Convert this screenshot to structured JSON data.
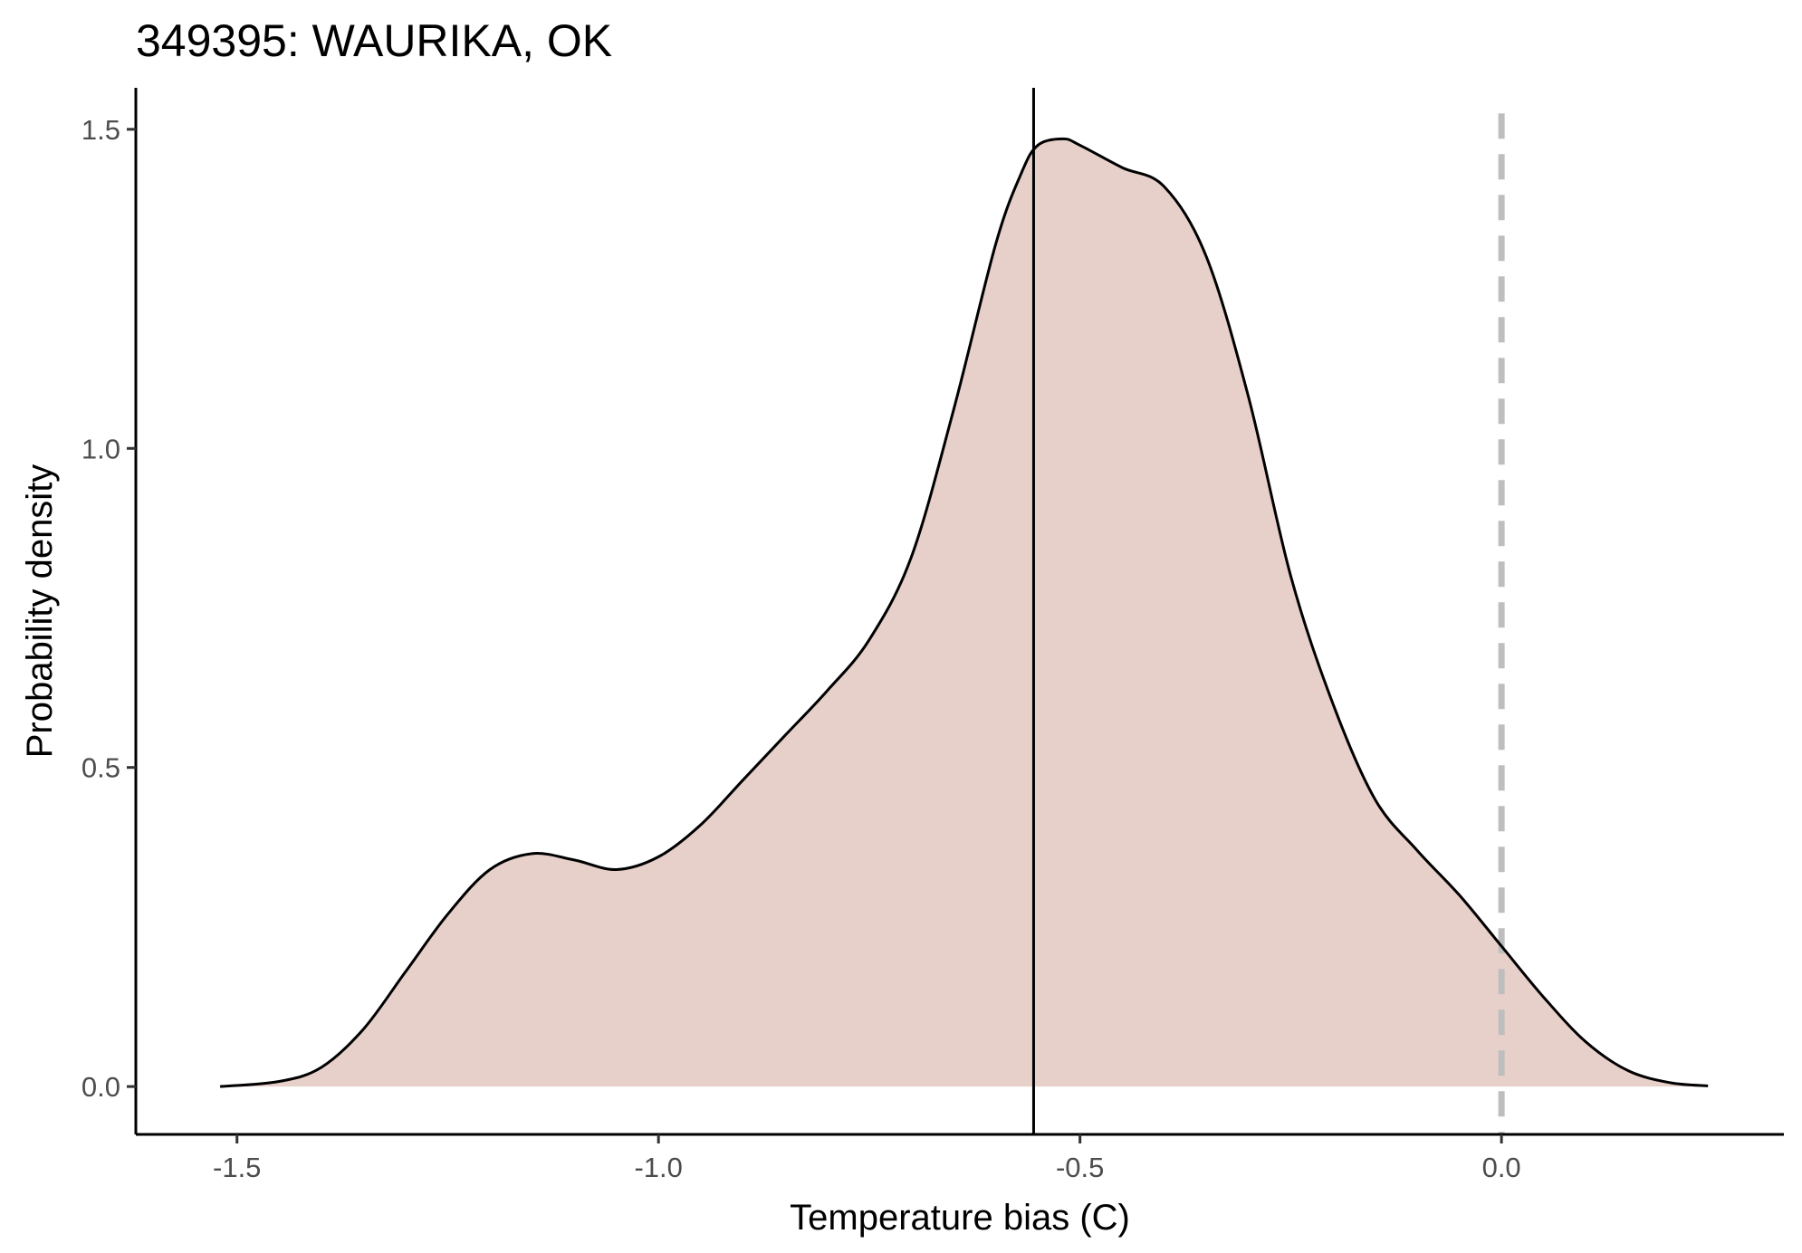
{
  "chart_data": {
    "type": "area",
    "title": "349395: WAURIKA, OK",
    "xlabel": "Temperature bias (C)",
    "ylabel": "Probability density",
    "xlim": [
      -1.62,
      0.335
    ],
    "ylim": [
      -0.075,
      1.565
    ],
    "x_ticks": [
      -1.5,
      -1.0,
      -0.5,
      0.0
    ],
    "x_tick_labels": [
      "-1.5",
      "-1.0",
      "-0.5",
      "0.0"
    ],
    "y_ticks": [
      0.0,
      0.5,
      1.0,
      1.5
    ],
    "y_tick_labels": [
      "0.0",
      "0.5",
      "1.0",
      "1.5"
    ],
    "grid": false,
    "legend": "none",
    "fill_color": "#e8d0ca",
    "line_color": "#000000",
    "reference_lines": [
      {
        "x": -0.555,
        "style": "solid",
        "color": "#000000"
      },
      {
        "x": 0.0,
        "style": "dashed",
        "color": "#bebebe"
      }
    ],
    "series": [
      {
        "x": [
          -1.52,
          -1.45,
          -1.4,
          -1.35,
          -1.3,
          -1.25,
          -1.2,
          -1.15,
          -1.1,
          -1.05,
          -1.0,
          -0.95,
          -0.9,
          -0.85,
          -0.8,
          -0.75,
          -0.7,
          -0.65,
          -0.6,
          -0.57,
          -0.55,
          -0.52,
          -0.5,
          -0.45,
          -0.4,
          -0.35,
          -0.3,
          -0.25,
          -0.2,
          -0.15,
          -0.1,
          -0.05,
          0.0,
          0.05,
          0.1,
          0.15,
          0.2,
          0.245
        ],
        "y": [
          0.0,
          0.008,
          0.03,
          0.09,
          0.18,
          0.27,
          0.34,
          0.365,
          0.355,
          0.34,
          0.36,
          0.41,
          0.48,
          0.55,
          0.62,
          0.7,
          0.83,
          1.06,
          1.32,
          1.43,
          1.475,
          1.485,
          1.475,
          1.44,
          1.41,
          1.3,
          1.08,
          0.8,
          0.6,
          0.45,
          0.37,
          0.3,
          0.22,
          0.14,
          0.07,
          0.025,
          0.006,
          0.001
        ]
      }
    ]
  }
}
